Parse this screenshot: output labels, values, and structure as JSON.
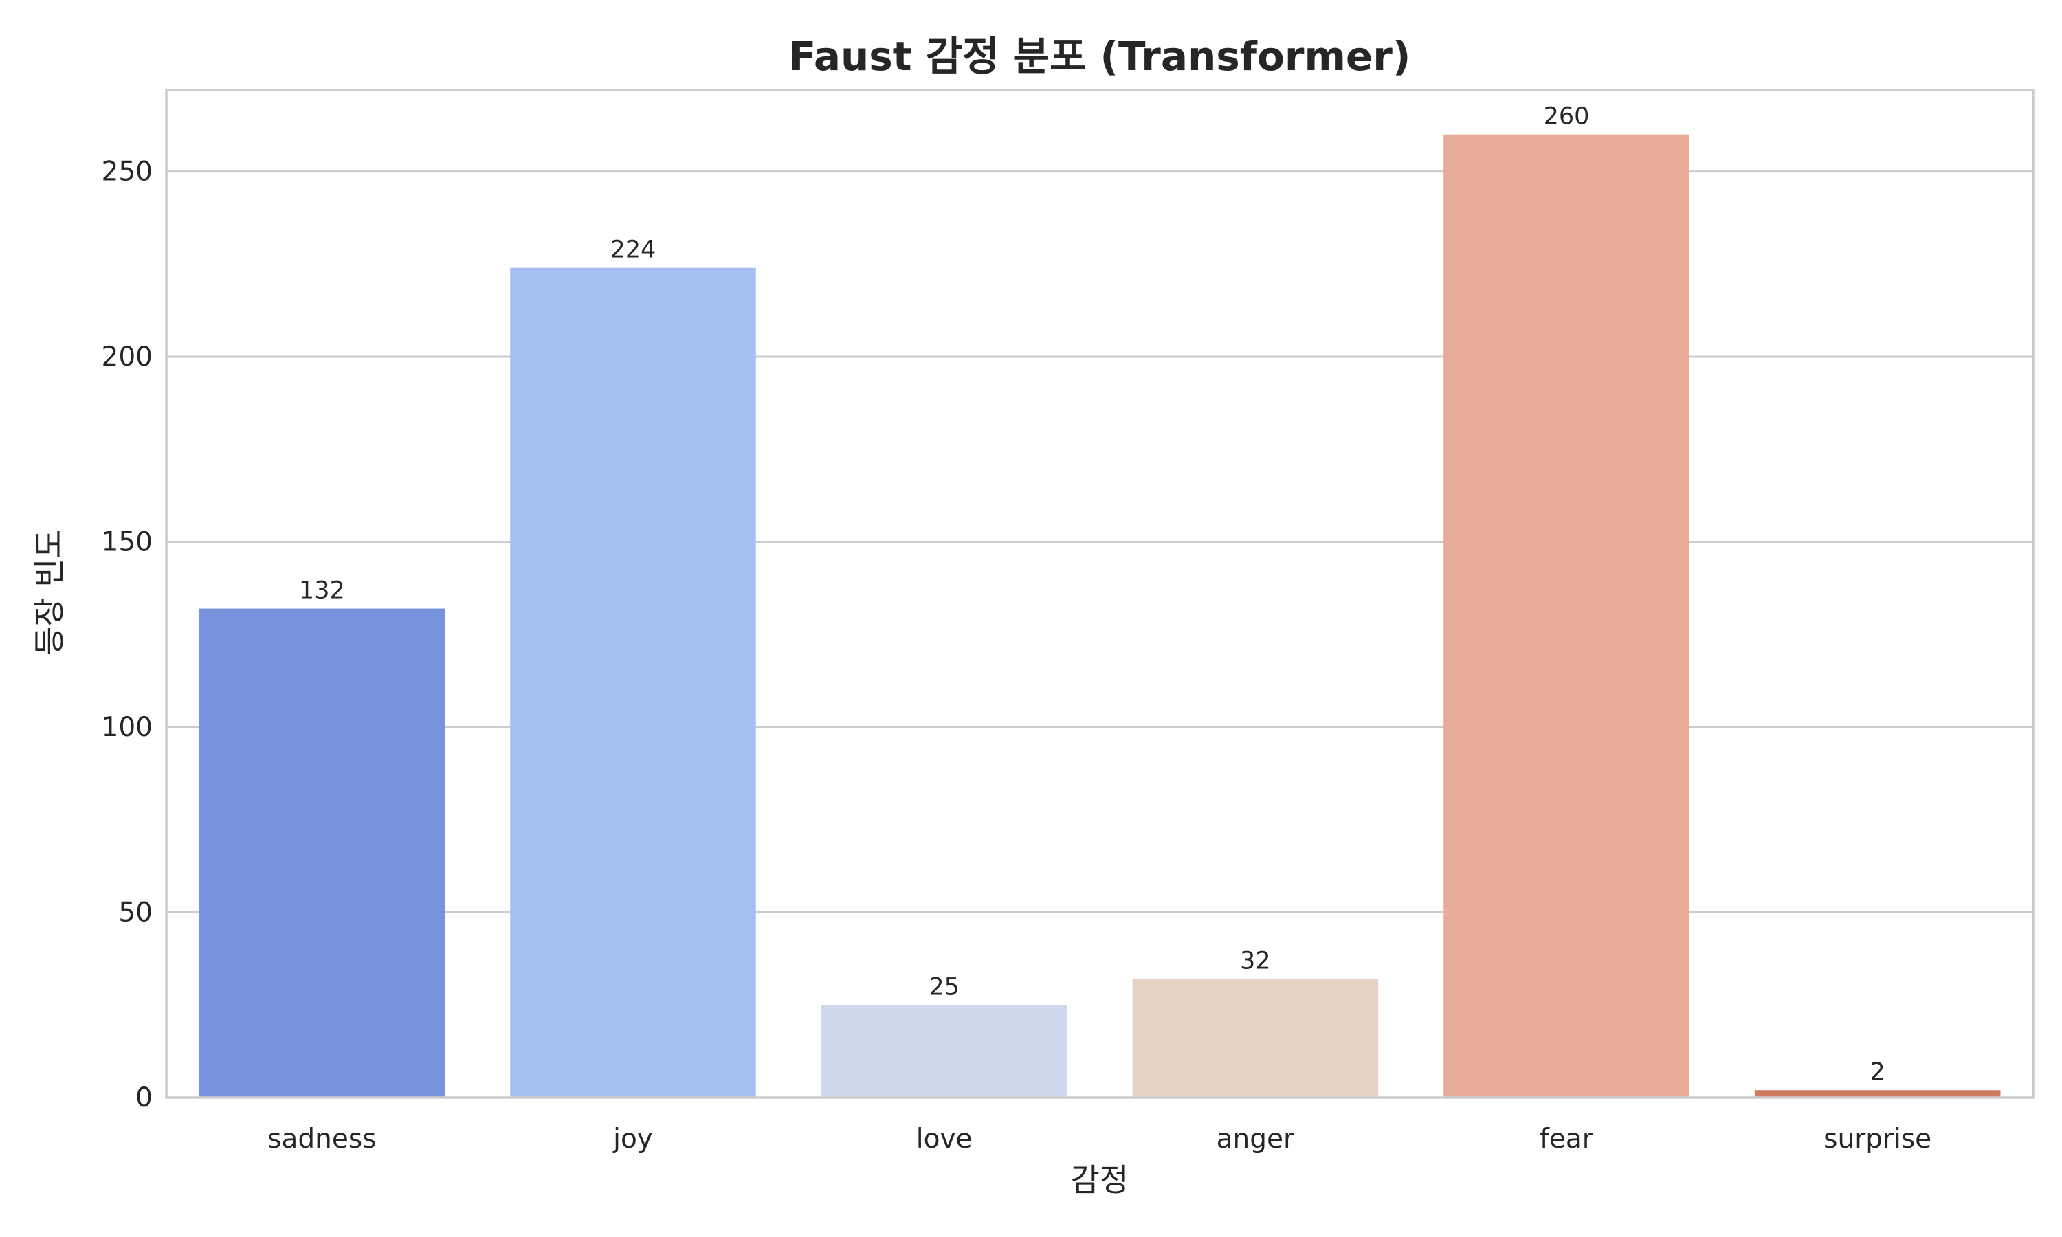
{
  "chart_data": {
    "type": "bar",
    "title": "Faust 감정 분포 (Transformer)",
    "xlabel": "감정",
    "ylabel": "등장 빈도",
    "categories": [
      "sadness",
      "joy",
      "love",
      "anger",
      "fear",
      "surprise"
    ],
    "values": [
      132,
      224,
      25,
      32,
      260,
      2
    ],
    "colors": [
      "#7793dd",
      "#a6bff2",
      "#cdd8ec",
      "#e8d2c7",
      "#e8ad96",
      "#d07a62"
    ],
    "ylim": [
      0,
      272
    ],
    "yticks": [
      0,
      50,
      100,
      150,
      200,
      250
    ],
    "grid": "y",
    "legend": "none"
  }
}
